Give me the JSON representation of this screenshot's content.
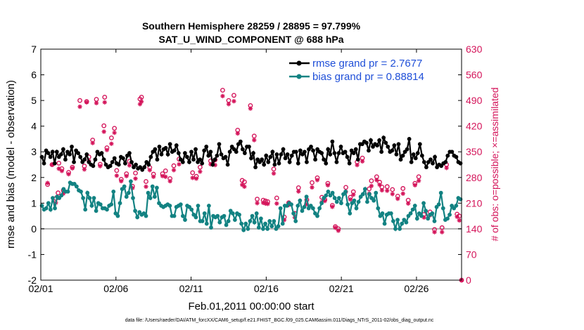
{
  "chart_data": {
    "type": "line",
    "title_line1": "Southern Hemisphere 28259 / 28895 = 97.799%",
    "title_line2": "SAT_U_WIND_COMPONENT @ 688 hPa",
    "xlabel": "Feb.01,2011 00:00:00 start",
    "ylabel": "rmse and bias (model - observation)",
    "y2label": "# of obs: o=possible; ×=assimilated",
    "footer": "data file: /Users/raeder/DAI/ATM_forcXX/CAM6_setup/f.e21.FHIST_BGC.f09_025.CAM6assim.011/Diags_NTrS_2011-02/obs_diag_output.nc",
    "xlim": [
      0,
      28
    ],
    "ylim": [
      -2,
      7
    ],
    "y2lim": [
      0,
      630
    ],
    "x_ticks": [
      0,
      5,
      10,
      15,
      20,
      25
    ],
    "x_tick_labels": [
      "02/01",
      "02/06",
      "02/11",
      "02/16",
      "02/21",
      "02/26"
    ],
    "y_ticks": [
      "-2",
      "-1",
      "0",
      "1",
      "2",
      "3",
      "4",
      "5",
      "6",
      "7"
    ],
    "y2_ticks": [
      "0",
      "70",
      "140",
      "210",
      "280",
      "350",
      "420",
      "490",
      "560",
      "630"
    ],
    "colors": {
      "rmse": "#000000",
      "bias": "#128282",
      "obs": "#d4145a",
      "zero": "#b0b0b0",
      "legend_text": "#1f4fd8"
    },
    "legend": [
      "rmse grand pr = 2.7677",
      "bias grand pr = 0.88814"
    ],
    "rmse": [
      2.8,
      2.55,
      3.05,
      2.95,
      2.8,
      3.0,
      2.55,
      3.0,
      2.8,
      2.9,
      3.1,
      2.7,
      3.0,
      2.9,
      3.2,
      2.6,
      3.05,
      2.95,
      2.8,
      2.6,
      2.7,
      2.9,
      2.6,
      2.5,
      2.45,
      2.7,
      3.0,
      2.9,
      2.95,
      2.7,
      2.5,
      2.4,
      2.45,
      2.6,
      2.75,
      2.55,
      2.5,
      2.8,
      2.75,
      2.55,
      2.85,
      2.95,
      2.6,
      2.4,
      2.5,
      2.35,
      2.4,
      2.3,
      2.4,
      2.6,
      2.5,
      2.8,
      3.0,
      3.1,
      2.7,
      3.2,
      2.9,
      3.1,
      3.15,
      2.9,
      3.3,
      3.0,
      3.05,
      3.25,
      2.95,
      2.7,
      2.6,
      2.95,
      2.8,
      2.6,
      3.0,
      2.7,
      3.1,
      2.6,
      2.7,
      2.55,
      3.05,
      3.2,
      2.85,
      3.0,
      2.5,
      2.7,
      2.85,
      3.3,
      2.9,
      2.75,
      2.8,
      2.5,
      3.0,
      3.2,
      3.1,
      3.0,
      3.3,
      3.4,
      3.1,
      2.95,
      3.2,
      3.2,
      2.75,
      2.95,
      2.4,
      2.7,
      2.6,
      2.7,
      2.5,
      2.85,
      2.6,
      2.8,
      3.0,
      2.5,
      2.9,
      2.55,
      2.9,
      3.1,
      2.75,
      2.9,
      2.6,
      2.85,
      3.0,
      3.0,
      2.55,
      3.05,
      2.9,
      3.0,
      2.6,
      3.1,
      3.2,
      3.05,
      2.7,
      3.1,
      3.0,
      2.95,
      2.7,
      2.55,
      3.1,
      2.9,
      3.4,
      2.95,
      2.6,
      2.95,
      3.2,
      2.95,
      3.0,
      2.8,
      2.55,
      3.05,
      2.95,
      3.1,
      2.7,
      3.3,
      3.3,
      3.4,
      3.35,
      3.05,
      3.45,
      3.2,
      3.3,
      3.25,
      3.45,
      3.0,
      3.55,
      3.35,
      3.2,
      3.0,
      3.05,
      3.25,
      2.9,
      3.3,
      2.7,
      2.85,
      3.0,
      3.1,
      3.5,
      2.6,
      2.9,
      2.75,
      2.95,
      3.3,
      2.85,
      2.6,
      2.4,
      2.6,
      2.7,
      2.55,
      2.8,
      2.4,
      2.5,
      2.45,
      2.55,
      2.6,
      2.85,
      3.0,
      3.0,
      2.85,
      2.8,
      2.6,
      2.55
    ],
    "bias": [
      0.9,
      0.75,
      0.8,
      1.0,
      0.75,
      1.2,
      0.8,
      1.25,
      1.2,
      1.3,
      1.55,
      1.45,
      1.45,
      1.8,
      1.75,
      1.75,
      1.65,
      1.5,
      1.45,
      1.2,
      0.75,
      1.4,
      1.2,
      0.9,
      1.2,
      0.7,
      1.0,
      0.95,
      0.8,
      0.8,
      0.75,
      0.9,
      0.95,
      1.45,
      0.6,
      0.5,
      1.0,
      1.55,
      1.65,
      1.25,
      1.4,
      1.85,
      1.2,
      0.7,
      0.45,
      0.65,
      0.55,
      0.6,
      0.5,
      1.4,
      1.2,
      1.65,
      1.25,
      1.6,
      1.0,
      0.9,
      0.85,
      0.9,
      0.95,
      0.9,
      0.5,
      0.5,
      0.85,
      0.9,
      0.95,
      0.5,
      0.35,
      0.9,
      0.85,
      0.75,
      0.55,
      0.45,
      0.9,
      0.3,
      0.3,
      0.6,
      0.2,
      0.9,
      0.05,
      0.5,
      0.45,
      0.5,
      0.25,
      0.45,
      0.5,
      0.15,
      0.3,
      0.7,
      0.6,
      0.35,
      0.6,
      0.55,
      0.2,
      -0.05,
      0.2,
      0.0,
      0.3,
      0.5,
      0.25,
      0.6,
      0.05,
      0.4,
      0.0,
      0.2,
      0.0,
      0.3,
      0.1,
      0.3,
      0.0,
      0.1,
      0.8,
      0.2,
      0.9,
      0.9,
      1.0,
      0.95,
      0.6,
      0.3,
      0.9,
      1.1,
      0.7,
      0.85,
      1.25,
      0.8,
      0.9,
      0.8,
      0.6,
      0.5,
      0.8,
      1.0,
      1.2,
      1.3,
      1.45,
      1.3,
      1.4,
      1.2,
      1.05,
      1.2,
      1.0,
      1.35,
      1.45,
      0.95,
      0.6,
      1.0,
      1.1,
      0.8,
      1.05,
      1.25,
      1.35,
      1.55,
      1.05,
      1.35,
      1.2,
      1.1,
      1.4,
      0.8,
      0.5,
      0.6,
      0.2,
      0.55,
      0.6,
      0.6,
      0.3,
      0.0,
      0.35,
      0.0,
      0.2,
      0.35,
      0.25,
      0.5,
      0.6,
      0.75,
      0.9,
      0.4,
      0.6,
      0.5,
      1.0,
      0.7,
      0.4,
      0.55,
      0.6,
      0.3,
      0.85,
      0.95,
      1.4,
      0.8,
      0.35,
      0.4,
      0.55,
      0.9,
      0.8,
      0.9,
      1.2,
      1.15
    ],
    "obs_possible": [
      [
        0.45,
        261
      ],
      [
        0.75,
        315
      ],
      [
        1.0,
        223
      ],
      [
        1.15,
        238
      ],
      [
        1.2,
        319
      ],
      [
        1.4,
        304
      ],
      [
        1.5,
        245
      ],
      [
        1.85,
        294
      ],
      [
        2.1,
        308
      ],
      [
        2.6,
        490
      ],
      [
        2.9,
        311
      ],
      [
        3.05,
        487
      ],
      [
        3.2,
        336
      ],
      [
        3.45,
        382
      ],
      [
        3.7,
        493
      ],
      [
        3.95,
        316
      ],
      [
        4.2,
        421
      ],
      [
        4.25,
        499
      ],
      [
        4.4,
        361
      ],
      [
        4.7,
        388
      ],
      [
        4.9,
        414
      ],
      [
        5.05,
        299
      ],
      [
        5.35,
        275
      ],
      [
        5.7,
        290
      ],
      [
        5.9,
        324
      ],
      [
        6.1,
        256
      ],
      [
        6.3,
        292
      ],
      [
        6.6,
        494
      ],
      [
        6.7,
        499
      ],
      [
        7.0,
        269
      ],
      [
        7.25,
        307
      ],
      [
        7.5,
        289
      ],
      [
        8.1,
        290
      ],
      [
        8.3,
        298
      ],
      [
        8.6,
        277
      ],
      [
        8.85,
        312
      ],
      [
        9.2,
        330
      ],
      [
        10.1,
        293
      ],
      [
        10.35,
        283
      ],
      [
        10.6,
        308
      ],
      [
        11.3,
        325
      ],
      [
        11.6,
        328
      ],
      [
        12.1,
        518
      ],
      [
        12.5,
        490
      ],
      [
        12.85,
        504
      ],
      [
        13.1,
        409
      ],
      [
        13.4,
        272
      ],
      [
        13.55,
        268
      ],
      [
        13.95,
        476
      ],
      [
        14.2,
        393
      ],
      [
        14.4,
        221
      ],
      [
        14.8,
        218
      ],
      [
        14.95,
        216
      ],
      [
        15.1,
        214
      ],
      [
        15.5,
        303
      ],
      [
        15.7,
        224
      ],
      [
        16.2,
        172
      ],
      [
        16.5,
        211
      ],
      [
        16.9,
        182
      ],
      [
        17.15,
        252
      ],
      [
        17.7,
        219
      ],
      [
        18.05,
        266
      ],
      [
        18.4,
        279
      ],
      [
        18.7,
        226
      ],
      [
        18.9,
        220
      ],
      [
        19.1,
        264
      ],
      [
        19.4,
        204
      ],
      [
        19.6,
        146
      ],
      [
        19.8,
        140
      ],
      [
        20.3,
        253
      ],
      [
        20.6,
        226
      ],
      [
        20.8,
        241
      ],
      [
        21.05,
        322
      ],
      [
        21.4,
        333
      ],
      [
        21.85,
        249
      ],
      [
        22.0,
        271
      ],
      [
        22.35,
        282
      ],
      [
        22.55,
        267
      ],
      [
        22.7,
        254
      ],
      [
        23.05,
        255
      ],
      [
        23.4,
        247
      ],
      [
        23.75,
        229
      ],
      [
        24.1,
        250
      ],
      [
        24.45,
        218
      ],
      [
        24.9,
        264
      ],
      [
        25.15,
        282
      ],
      [
        25.5,
        179
      ],
      [
        25.9,
        186
      ],
      [
        26.2,
        138
      ],
      [
        26.7,
        143
      ],
      [
        27.0,
        315
      ],
      [
        27.7,
        180
      ],
      [
        27.85,
        175
      ],
      [
        28.0,
        0
      ]
    ],
    "obs_assimilated": [
      [
        0.45,
        265
      ],
      [
        0.75,
        315
      ],
      [
        1.0,
        211
      ],
      [
        1.15,
        225
      ],
      [
        1.2,
        304
      ],
      [
        1.4,
        298
      ],
      [
        1.5,
        236
      ],
      [
        1.85,
        289
      ],
      [
        2.1,
        305
      ],
      [
        2.6,
        473
      ],
      [
        2.9,
        302
      ],
      [
        3.05,
        485
      ],
      [
        3.2,
        325
      ],
      [
        3.45,
        374
      ],
      [
        3.7,
        483
      ],
      [
        3.95,
        311
      ],
      [
        4.2,
        405
      ],
      [
        4.25,
        485
      ],
      [
        4.4,
        355
      ],
      [
        4.7,
        372
      ],
      [
        4.9,
        402
      ],
      [
        5.05,
        285
      ],
      [
        5.35,
        270
      ],
      [
        5.7,
        284
      ],
      [
        5.9,
        313
      ],
      [
        6.1,
        251
      ],
      [
        6.3,
        277
      ],
      [
        6.6,
        480
      ],
      [
        6.7,
        487
      ],
      [
        7.0,
        255
      ],
      [
        7.25,
        300
      ],
      [
        7.5,
        282
      ],
      [
        8.1,
        284
      ],
      [
        8.3,
        282
      ],
      [
        8.6,
        270
      ],
      [
        8.85,
        300
      ],
      [
        9.2,
        316
      ],
      [
        10.1,
        279
      ],
      [
        10.35,
        277
      ],
      [
        10.6,
        296
      ],
      [
        11.3,
        316
      ],
      [
        11.6,
        314
      ],
      [
        12.1,
        502
      ],
      [
        12.5,
        480
      ],
      [
        12.85,
        488
      ],
      [
        13.1,
        400
      ],
      [
        13.4,
        260
      ],
      [
        13.55,
        255
      ],
      [
        13.95,
        468
      ],
      [
        14.2,
        382
      ],
      [
        14.4,
        210
      ],
      [
        14.8,
        211
      ],
      [
        14.95,
        209
      ],
      [
        15.1,
        208
      ],
      [
        15.5,
        291
      ],
      [
        15.7,
        209
      ],
      [
        16.2,
        164
      ],
      [
        16.5,
        205
      ],
      [
        16.9,
        171
      ],
      [
        17.15,
        242
      ],
      [
        17.7,
        207
      ],
      [
        18.05,
        253
      ],
      [
        18.4,
        273
      ],
      [
        18.7,
        213
      ],
      [
        18.9,
        216
      ],
      [
        19.1,
        259
      ],
      [
        19.4,
        200
      ],
      [
        19.6,
        143
      ],
      [
        19.8,
        135
      ],
      [
        20.3,
        241
      ],
      [
        20.6,
        220
      ],
      [
        20.8,
        233
      ],
      [
        21.05,
        314
      ],
      [
        21.4,
        324
      ],
      [
        21.85,
        236
      ],
      [
        22.0,
        257
      ],
      [
        22.35,
        273
      ],
      [
        22.55,
        260
      ],
      [
        22.7,
        245
      ],
      [
        23.05,
        244
      ],
      [
        23.4,
        235
      ],
      [
        23.75,
        222
      ],
      [
        24.1,
        236
      ],
      [
        24.45,
        209
      ],
      [
        24.9,
        259
      ],
      [
        25.15,
        271
      ],
      [
        25.5,
        171
      ],
      [
        25.9,
        177
      ],
      [
        26.2,
        131
      ],
      [
        26.7,
        131
      ],
      [
        27.0,
        306
      ],
      [
        27.7,
        173
      ],
      [
        27.85,
        163
      ],
      [
        28.0,
        0
      ]
    ]
  }
}
